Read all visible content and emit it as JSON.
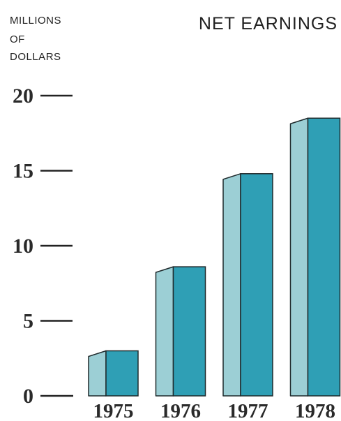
{
  "chart_data": {
    "type": "bar",
    "title": "NET EARNINGS",
    "ylabel": [
      "MILLIONS",
      "OF",
      "DOLLARS"
    ],
    "xlabel": "",
    "categories": [
      "1975",
      "1976",
      "1977",
      "1978"
    ],
    "values": [
      3.0,
      8.6,
      14.8,
      18.5
    ],
    "yticks": [
      "20",
      "15",
      "10",
      "5",
      "0"
    ],
    "ylim": [
      0,
      20
    ],
    "grid": false,
    "colors": {
      "bar_front": "#2f9fb5",
      "bar_side": "#9ccfd5",
      "stroke": "#1f2a2c"
    }
  }
}
